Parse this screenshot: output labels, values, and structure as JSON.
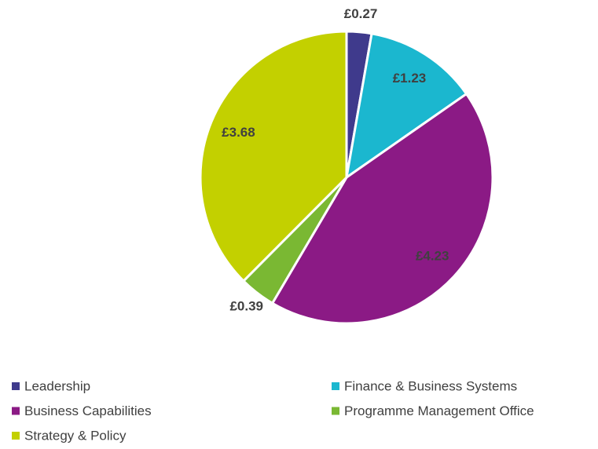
{
  "chart_data": {
    "type": "pie",
    "categories": [
      "Leadership",
      "Finance & Business Systems",
      "Business Capabilities",
      "Programme Management Office",
      "Strategy & Policy"
    ],
    "values": [
      0.27,
      1.23,
      4.23,
      0.39,
      3.68
    ],
    "value_labels": [
      "£0.27",
      "£1.23",
      "£4.23",
      "£0.39",
      "£3.68"
    ],
    "colors": [
      "#3f3a8c",
      "#1bb7cf",
      "#8b1a85",
      "#7ab833",
      "#c3d000"
    ],
    "legend": "bottom"
  }
}
